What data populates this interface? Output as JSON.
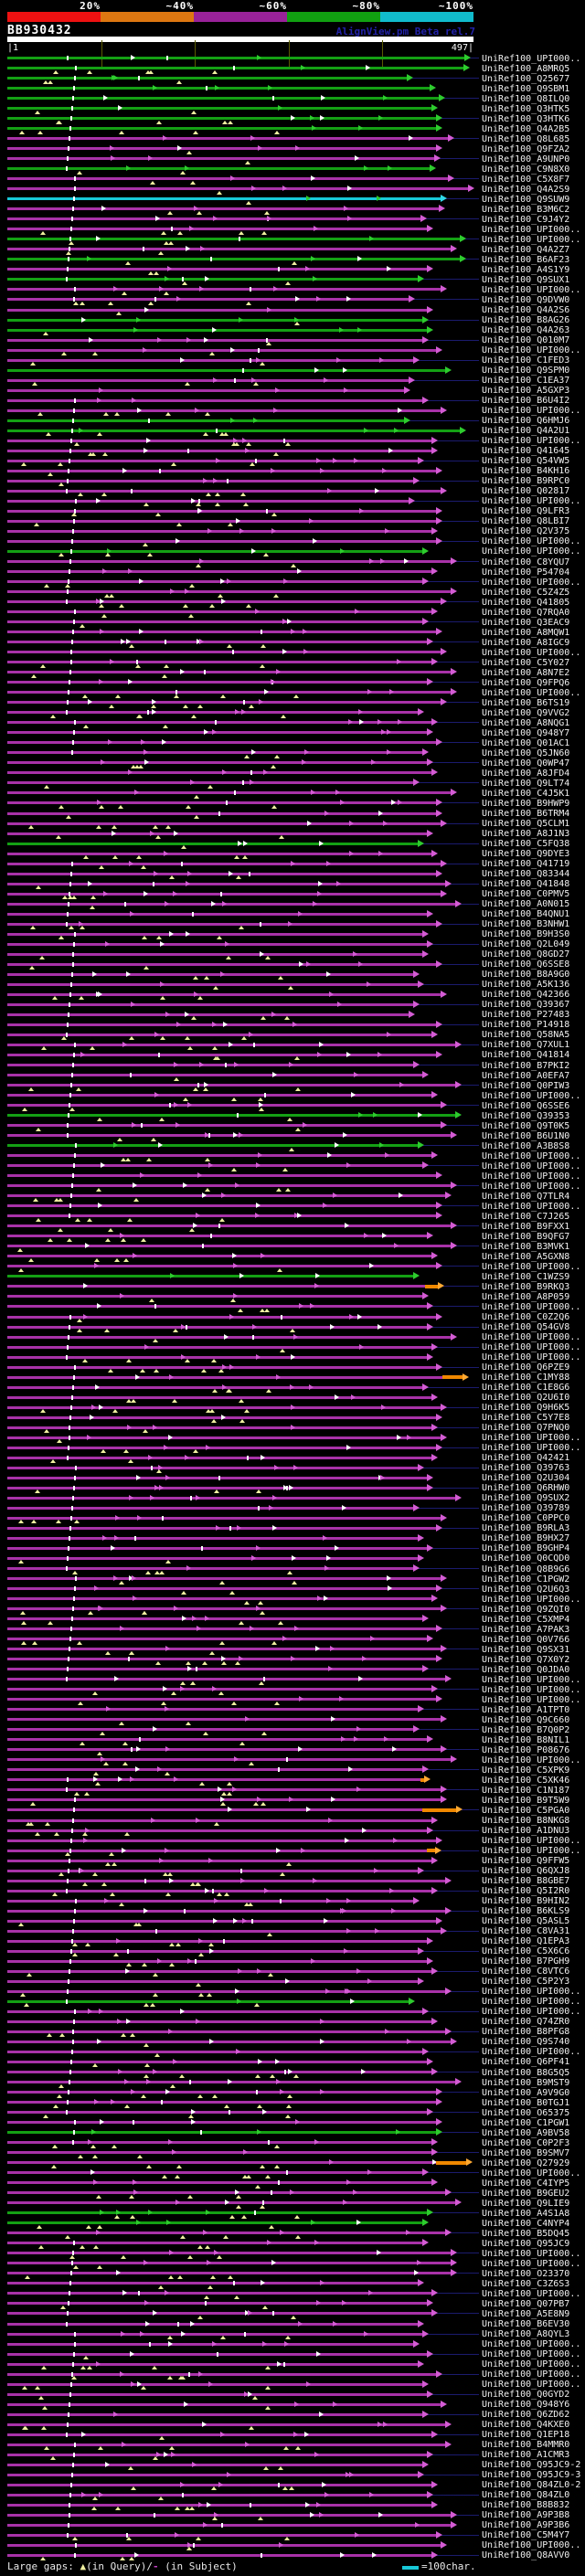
{
  "ui": {
    "scale": {
      "labels": [
        "20%",
        "~40%",
        "~60%",
        "~80%",
        "~100%"
      ],
      "segment_colors": [
        "#ee1111",
        "#dd7711",
        "#992299",
        "#11a011",
        "#11bbcc"
      ]
    },
    "title": "BB930432",
    "version": "AlignView.pm Beta rel.7",
    "ruler": {
      "start_label": "|1",
      "end_label": "497|",
      "query_length": 497,
      "ticks": [
        100,
        200,
        300,
        400
      ]
    },
    "legend": {
      "large_gaps": "Large gaps:",
      "gap_icon": "▲",
      "in_query": "(in Query)/",
      "subject_dash": "-",
      "in_subject": " (in Subject)",
      "scale_label": "=100char."
    },
    "colors": {
      "background": "#000000",
      "bar_purple": "#a832a8",
      "bar_green": "#14a014",
      "bar_cyan": "#18c8d8",
      "bar_orange": "#f08800",
      "gap_yellow": "#f0f0a0",
      "leader_navy": "#1b1b6e",
      "ruler_tick": "#5a5a00",
      "query_bar": "#ffffff",
      "label_text": "#f0f0f0",
      "version_text": "#2222aa"
    }
  },
  "chart_data": {
    "type": "bar",
    "title": "BB930432",
    "x_range": [
      1,
      497
    ],
    "identity_legend": {
      "red": "20%",
      "orange": "~40%",
      "purple": "~60%",
      "green": "~80%",
      "cyan": "~100%"
    },
    "row_format": [
      "label",
      "identity_color p=purple(~60%) g=green(~80%) c=cyan(~100%)",
      "alignment_end_fraction",
      "orange_segment_span_optional"
    ],
    "rows": [
      [
        "UniRef100_UPI000..",
        "g",
        0.98
      ],
      [
        "UniRef100_A8MRQ5",
        "g",
        0.978
      ],
      [
        "UniRef100_Q25677",
        "g",
        0.857
      ],
      [
        "UniRef100_Q9SBM1",
        "g",
        0.906
      ],
      [
        "UniRef100_Q8ILQ0",
        "g",
        0.926
      ],
      [
        "UniRef100_Q3HTK5",
        "g",
        0.91
      ],
      [
        "UniRef100_Q3HTK6",
        "g",
        0.92
      ],
      [
        "UniRef100_Q4A2B5",
        "g",
        0.92
      ],
      [
        "UniRef100_Q8L685",
        "p",
        0.945
      ],
      [
        "UniRef100_Q9FZA2",
        "p",
        0.92
      ],
      [
        "UniRef100_A9UNP0",
        "p",
        0.916
      ],
      [
        "UniRef100_C9N8X0",
        "g",
        0.906
      ],
      [
        "UniRef100_C5X8F7",
        "p",
        0.945
      ],
      [
        "UniRef100_Q4A2S9",
        "p",
        0.988
      ],
      [
        "UniRef100_Q9SUW9",
        "c",
        0.93
      ],
      [
        "UniRef100_B3M6C2",
        "p",
        0.926
      ],
      [
        "UniRef100_C9J4Y2",
        "p",
        0.886
      ],
      [
        "UniRef100_UPI000..",
        "p",
        0.9
      ],
      [
        "UniRef100_UPI000..",
        "g",
        0.97
      ],
      [
        "UniRef100_Q4A2Z7",
        "p",
        0.95
      ],
      [
        "UniRef100_B6AF23",
        "g",
        0.97
      ],
      [
        "UniRef100_A4S1Y9",
        "p",
        0.9
      ],
      [
        "UniRef100_Q9SUX1",
        "g",
        0.88
      ],
      [
        "UniRef100_UPI000..",
        "p",
        0.93
      ],
      [
        "UniRef100_Q9DVW0",
        "p",
        0.86
      ],
      [
        "UniRef100_Q4A2S6",
        "p",
        0.9
      ],
      [
        "UniRef100_B8AG26",
        "g",
        0.89
      ],
      [
        "UniRef100_Q4A263",
        "g",
        0.9
      ],
      [
        "UniRef100_Q010M7",
        "p",
        0.89
      ],
      [
        "UniRef100_UPI000..",
        "p",
        0.92
      ],
      [
        "UniRef100_C1FED3",
        "p",
        0.87
      ],
      [
        "UniRef100_Q9SPM0",
        "g",
        0.94
      ],
      [
        "UniRef100_C1EA37",
        "p",
        0.86
      ],
      [
        "UniRef100_A5GXP3",
        "p",
        0.85
      ],
      [
        "UniRef100_B6U4I2",
        "p",
        0.89
      ],
      [
        "UniRef100_UPI000..",
        "p",
        0.93
      ],
      [
        "UniRef100_Q6HMJ6",
        "g",
        0.85
      ],
      [
        "UniRef100_Q4A2U1",
        "g",
        0.97
      ],
      [
        "UniRef100_UPI000..",
        "p",
        0.91
      ],
      [
        "UniRef100_Q41645",
        "p",
        0.91
      ],
      [
        "UniRef100_Q54VW5",
        "p",
        0.88
      ],
      [
        "UniRef100_B4KH16",
        "p",
        0.92
      ],
      [
        "UniRef100_B9RPC0",
        "p",
        0.87
      ],
      [
        "UniRef100_Q02817",
        "p",
        0.93
      ],
      [
        "UniRef100_UPI000..",
        "p",
        0.86
      ],
      [
        "UniRef100_Q9LFR3",
        "p",
        0.92
      ],
      [
        "UniRef100_Q8LBI7",
        "p",
        0.92
      ],
      [
        "UniRef100_Q2V375",
        "p",
        0.91
      ],
      [
        "UniRef100_UPI000..",
        "p",
        0.92
      ],
      [
        "UniRef100_UPI000..",
        "g",
        0.89
      ],
      [
        "UniRef100_C8YQU7",
        "p",
        0.95
      ],
      [
        "UniRef100_P54704",
        "p",
        0.91
      ],
      [
        "UniRef100_UPI000..",
        "p",
        0.89
      ],
      [
        "UniRef100_C5Z4Z5",
        "p",
        0.95
      ],
      [
        "UniRef100_Q41805",
        "p",
        0.93
      ],
      [
        "UniRef100_Q7RQA0",
        "p",
        0.91
      ],
      [
        "UniRef100_Q3EAC9",
        "p",
        0.89
      ],
      [
        "UniRef100_A8MQW1",
        "p",
        0.92
      ],
      [
        "UniRef100_A8IGC9",
        "p",
        0.9
      ],
      [
        "UniRef100_UPI000..",
        "p",
        0.93
      ],
      [
        "UniRef100_C5Y027",
        "p",
        0.91
      ],
      [
        "UniRef100_A8N7E2",
        "p",
        0.95
      ],
      [
        "UniRef100_Q9FPQ6",
        "p",
        0.9
      ],
      [
        "UniRef100_UPI000..",
        "p",
        0.95
      ],
      [
        "UniRef100_B6TS19",
        "p",
        0.93
      ],
      [
        "UniRef100_Q9VVG2",
        "p",
        0.88
      ],
      [
        "UniRef100_A8NQG1",
        "p",
        0.91
      ],
      [
        "UniRef100_Q948Y7",
        "p",
        0.9
      ],
      [
        "UniRef100_Q01AC1",
        "p",
        0.92
      ],
      [
        "UniRef100_Q5JN60",
        "p",
        0.89
      ],
      [
        "UniRef100_Q0WP47",
        "p",
        0.9
      ],
      [
        "UniRef100_A8JFD4",
        "p",
        0.91
      ],
      [
        "UniRef100_Q9LT74",
        "p",
        0.87
      ],
      [
        "UniRef100_C4J5K1",
        "p",
        0.95
      ],
      [
        "UniRef100_B9HWP9",
        "p",
        0.92
      ],
      [
        "UniRef100_B6TRM4",
        "p",
        0.92
      ],
      [
        "UniRef100_Q5CLM1",
        "p",
        0.93
      ],
      [
        "UniRef100_A8J1N3",
        "p",
        0.9
      ],
      [
        "UniRef100_C5FQ38",
        "g",
        0.88
      ],
      [
        "UniRef100_Q9DYE3",
        "p",
        0.91
      ],
      [
        "UniRef100_Q41719",
        "p",
        0.93
      ],
      [
        "UniRef100_Q83344",
        "p",
        0.92
      ],
      [
        "UniRef100_Q41848",
        "p",
        0.94
      ],
      [
        "UniRef100_C0PMV5",
        "p",
        0.93
      ],
      [
        "UniRef100_A0N015",
        "p",
        0.96
      ],
      [
        "UniRef100_B4QNU1",
        "p",
        0.9
      ],
      [
        "UniRef100_B3NHW1",
        "p",
        0.92
      ],
      [
        "UniRef100_B9H3S0",
        "p",
        0.89
      ],
      [
        "UniRef100_Q2L049",
        "p",
        0.9
      ],
      [
        "UniRef100_Q8GD27",
        "p",
        0.89
      ],
      [
        "UniRef100_Q6SSE8",
        "p",
        0.92
      ],
      [
        "UniRef100_B8A9G0",
        "p",
        0.87
      ],
      [
        "UniRef100_A5K136",
        "p",
        0.88
      ],
      [
        "UniRef100_Q42366",
        "p",
        0.93
      ],
      [
        "UniRef100_Q39367",
        "p",
        0.87
      ],
      [
        "UniRef100_P27483",
        "p",
        0.86
      ],
      [
        "UniRef100_P14918",
        "p",
        0.92
      ],
      [
        "UniRef100_Q58NA5",
        "p",
        0.91
      ],
      [
        "UniRef100_Q7XUL1",
        "p",
        0.96
      ],
      [
        "UniRef100_Q41814",
        "p",
        0.92
      ],
      [
        "UniRef100_B7PKI2",
        "p",
        0.87
      ],
      [
        "UniRef100_A0EFA7",
        "p",
        0.89
      ],
      [
        "UniRef100_Q0PIW3",
        "p",
        0.96
      ],
      [
        "UniRef100_UPI000..",
        "p",
        0.91
      ],
      [
        "UniRef100_Q6SSE6",
        "p",
        0.93
      ],
      [
        "UniRef100_Q39353",
        "g",
        0.96
      ],
      [
        "UniRef100_Q9T0K5",
        "p",
        0.93
      ],
      [
        "UniRef100_B6U1N0",
        "p",
        0.95
      ],
      [
        "UniRef100_A3B8S8",
        "g",
        0.88
      ],
      [
        "UniRef100_UPI000..",
        "p",
        0.91
      ],
      [
        "UniRef100_UPI000..",
        "p",
        0.89
      ],
      [
        "UniRef100_UPI000..",
        "p",
        0.92
      ],
      [
        "UniRef100_UPI000..",
        "p",
        0.95
      ],
      [
        "UniRef100_Q7TLR4",
        "p",
        0.94
      ],
      [
        "UniRef100_UPI000..",
        "p",
        0.92
      ],
      [
        "UniRef100_C7J265",
        "p",
        0.92
      ],
      [
        "UniRef100_B9FXX1",
        "p",
        0.95
      ],
      [
        "UniRef100_B9QFG7",
        "p",
        0.9
      ],
      [
        "UniRef100_B3MVK1",
        "p",
        0.95
      ],
      [
        "UniRef100_A5GXN8",
        "p",
        0.91
      ],
      [
        "UniRef100_UPI000..",
        "p",
        0.92
      ],
      [
        "UniRef100_C1WZS9",
        "g",
        0.87
      ],
      [
        "UniRef100_B9RKQ3",
        "p",
        0.925,
        [
          0.896,
          0.923
        ]
      ],
      [
        "UniRef100_A8P059",
        "p",
        0.89
      ],
      [
        "UniRef100_UPI000..",
        "p",
        0.9
      ],
      [
        "UniRef100_C0Z2Q6",
        "p",
        0.92
      ],
      [
        "UniRef100_Q54GV8",
        "p",
        0.9
      ],
      [
        "UniRef100_UPI000..",
        "p",
        0.95
      ],
      [
        "UniRef100_UPI000..",
        "p",
        0.91
      ],
      [
        "UniRef100_UPI000..",
        "p",
        0.9
      ],
      [
        "UniRef100_Q6PZE9",
        "p",
        0.92
      ],
      [
        "UniRef100_C1MY88",
        "p",
        0.977,
        [
          0.933,
          0.977
        ]
      ],
      [
        "UniRef100_C1E8G6",
        "p",
        0.89
      ],
      [
        "UniRef100_Q2U6I0",
        "p",
        0.91
      ],
      [
        "UniRef100_Q9H6K5",
        "p",
        0.93
      ],
      [
        "UniRef100_C5Y7E8",
        "p",
        0.92
      ],
      [
        "UniRef100_Q7PNQ0",
        "p",
        0.91
      ],
      [
        "UniRef100_UPI000..",
        "p",
        0.93
      ],
      [
        "UniRef100_UPI000..",
        "p",
        0.92
      ],
      [
        "UniRef100_Q42421",
        "p",
        0.91
      ],
      [
        "UniRef100_Q39763",
        "p",
        0.88
      ],
      [
        "UniRef100_Q2U304",
        "p",
        0.9
      ],
      [
        "UniRef100_Q6RHW0",
        "p",
        0.9
      ],
      [
        "UniRef100_Q9SUX2",
        "p",
        0.96
      ],
      [
        "UniRef100_Q39789",
        "p",
        0.87
      ],
      [
        "UniRef100_C0PPC0",
        "p",
        0.93
      ],
      [
        "UniRef100_B9RLA3",
        "p",
        0.92
      ],
      [
        "UniRef100_B9HX27",
        "p",
        0.88
      ],
      [
        "UniRef100_B9GHP4",
        "p",
        0.9
      ],
      [
        "UniRef100_Q0CQD0",
        "p",
        0.88
      ],
      [
        "UniRef100_Q8B9G6",
        "p",
        0.87
      ],
      [
        "UniRef100_C1PGW2",
        "p",
        0.93
      ],
      [
        "UniRef100_Q2U6Q3",
        "p",
        0.92
      ],
      [
        "UniRef100_UPI000..",
        "p",
        0.91
      ],
      [
        "UniRef100_Q9ZQI0",
        "p",
        0.93
      ],
      [
        "UniRef100_C5XMP4",
        "p",
        0.89
      ],
      [
        "UniRef100_A7PAK3",
        "p",
        0.92
      ],
      [
        "UniRef100_Q0V766",
        "p",
        0.9
      ],
      [
        "UniRef100_Q9SX31",
        "p",
        0.93
      ],
      [
        "UniRef100_Q7X0Y2",
        "p",
        0.92
      ],
      [
        "UniRef100_Q0JDA0",
        "p",
        0.89
      ],
      [
        "UniRef100_UPI000..",
        "p",
        0.94
      ],
      [
        "UniRef100_UPI000..",
        "p",
        0.91
      ],
      [
        "UniRef100_UPI000..",
        "p",
        0.92
      ],
      [
        "UniRef100_A1TPT0",
        "p",
        0.88
      ],
      [
        "UniRef100_Q9C660",
        "p",
        0.93
      ],
      [
        "UniRef100_B7Q0P2",
        "p",
        0.87
      ],
      [
        "UniRef100_B8NIL1",
        "p",
        0.9
      ],
      [
        "UniRef100_P08676",
        "p",
        0.93
      ],
      [
        "UniRef100_UPI000..",
        "p",
        0.95
      ],
      [
        "UniRef100_C5XPK9",
        "p",
        0.89
      ],
      [
        "UniRef100_C5XK46",
        "p",
        0.894,
        [
          0.886,
          0.894
        ]
      ],
      [
        "UniRef100_C1N187",
        "p",
        0.93
      ],
      [
        "UniRef100_B9T5W9",
        "p",
        0.93
      ],
      [
        "UniRef100_C5PGA0",
        "p",
        0.963,
        [
          0.89,
          0.963
        ]
      ],
      [
        "UniRef100_B8NKG8",
        "p",
        0.91
      ],
      [
        "UniRef100_A1DNU3",
        "p",
        0.9
      ],
      [
        "UniRef100_UPI000..",
        "p",
        0.92
      ],
      [
        "UniRef100_UPI000..",
        "p",
        0.917,
        [
          0.9,
          0.917
        ]
      ],
      [
        "UniRef100_Q9FFW5",
        "p",
        0.91
      ],
      [
        "UniRef100_Q6QXJ8",
        "p",
        0.88
      ],
      [
        "UniRef100_B8GBE7",
        "p",
        0.94
      ],
      [
        "UniRef100_Q5I2R0",
        "p",
        0.91
      ],
      [
        "UniRef100_B9HIN2",
        "p",
        0.87
      ],
      [
        "UniRef100_B6KLS9",
        "p",
        0.94
      ],
      [
        "UniRef100_Q5ASL5",
        "p",
        0.92
      ],
      [
        "UniRef100_C8VA31",
        "p",
        0.93
      ],
      [
        "UniRef100_Q1EPA3",
        "p",
        0.9
      ],
      [
        "UniRef100_C5X6C6",
        "p",
        0.88
      ],
      [
        "UniRef100_B7PGH9",
        "p",
        0.9
      ],
      [
        "UniRef100_C8VTC6",
        "p",
        0.91
      ],
      [
        "UniRef100_C5P2Y3",
        "p",
        0.88
      ],
      [
        "UniRef100_UPI000..",
        "p",
        0.94
      ],
      [
        "UniRef100_UPI000..",
        "g",
        0.86
      ],
      [
        "UniRef100_UPI000..",
        "p",
        0.89
      ],
      [
        "UniRef100_Q74ZR0",
        "p",
        0.91
      ],
      [
        "UniRef100_B8PFG8",
        "p",
        0.94
      ],
      [
        "UniRef100_Q9S740",
        "p",
        0.95
      ],
      [
        "UniRef100_UPI000..",
        "p",
        0.89
      ],
      [
        "UniRef100_Q6PF41",
        "p",
        0.9
      ],
      [
        "UniRef100_B8G5Q5",
        "p",
        0.91
      ],
      [
        "UniRef100_B9MST9",
        "p",
        0.96
      ],
      [
        "UniRef100_A9V9G0",
        "p",
        0.92
      ],
      [
        "UniRef100_B0TGJ1",
        "p",
        0.92
      ],
      [
        "UniRef100_O65375",
        "p",
        0.9
      ],
      [
        "UniRef100_C1PGW1",
        "p",
        0.92
      ],
      [
        "UniRef100_A9BV58",
        "g",
        0.92
      ],
      [
        "UniRef100_C0P2F3",
        "p",
        0.91
      ],
      [
        "UniRef100_B9SMV7",
        "p",
        0.91
      ],
      [
        "UniRef100_Q27929",
        "p",
        0.984,
        [
          0.92,
          0.984
        ]
      ],
      [
        "UniRef100_UPI000..",
        "p",
        0.89
      ],
      [
        "UniRef100_C4IYP5",
        "p",
        0.91
      ],
      [
        "UniRef100_B9GEU2",
        "p",
        0.94
      ],
      [
        "UniRef100_Q9LIE9",
        "p",
        0.96
      ],
      [
        "UniRef100_A4S1A8",
        "g",
        0.9
      ],
      [
        "UniRef100_C4NYP4",
        "g",
        0.89
      ],
      [
        "UniRef100_B5DQ45",
        "p",
        0.94
      ],
      [
        "UniRef100_Q95JC9",
        "p",
        0.89
      ],
      [
        "UniRef100_UPI000..",
        "p",
        0.95
      ],
      [
        "UniRef100_UPI000..",
        "p",
        0.95
      ],
      [
        "UniRef100_O23370",
        "p",
        0.95
      ],
      [
        "UniRef100_C3Z6S3",
        "p",
        0.88
      ],
      [
        "UniRef100_UPI000..",
        "p",
        0.91
      ],
      [
        "UniRef100_Q07PB7",
        "p",
        0.9
      ],
      [
        "UniRef100_A5E8N9",
        "p",
        0.91
      ],
      [
        "UniRef100_B6EV30",
        "p",
        0.88
      ],
      [
        "UniRef100_A8QYL3",
        "p",
        0.89
      ],
      [
        "UniRef100_UPI000..",
        "p",
        0.87
      ],
      [
        "UniRef100_UPI000..",
        "p",
        0.9
      ],
      [
        "UniRef100_UPI000..",
        "p",
        0.88
      ],
      [
        "UniRef100_UPI000..",
        "p",
        0.92
      ],
      [
        "UniRef100_UPI000..",
        "p",
        0.89
      ],
      [
        "UniRef100_Q0GYD2",
        "p",
        0.9
      ],
      [
        "UniRef100_Q948Y6",
        "p",
        0.93
      ],
      [
        "UniRef100_Q6ZD62",
        "p",
        0.89
      ],
      [
        "UniRef100_Q4KXE0",
        "p",
        0.94
      ],
      [
        "UniRef100_Q1EP18",
        "p",
        0.91
      ],
      [
        "UniRef100_B4MMR0",
        "p",
        0.94
      ],
      [
        "UniRef100_A1CMR3",
        "p",
        0.9
      ],
      [
        "UniRef100_Q95JC9-2",
        "p",
        0.89
      ],
      [
        "UniRef100_Q95JC9-3",
        "p",
        0.88
      ],
      [
        "UniRef100_Q84ZL0-2",
        "p",
        0.91
      ],
      [
        "UniRef100_Q84ZL0",
        "p",
        0.9
      ],
      [
        "UniRef100_B8B832",
        "p",
        0.91
      ],
      [
        "UniRef100_A9P3B8",
        "p",
        0.95
      ],
      [
        "UniRef100_A9P3B6",
        "p",
        0.95
      ],
      [
        "UniRef100_C5M4Y7",
        "p",
        0.92
      ],
      [
        "UniRef100_UPI000..",
        "p",
        0.93
      ],
      [
        "UniRef100_Q8AVV0",
        "p",
        0.91
      ]
    ]
  }
}
